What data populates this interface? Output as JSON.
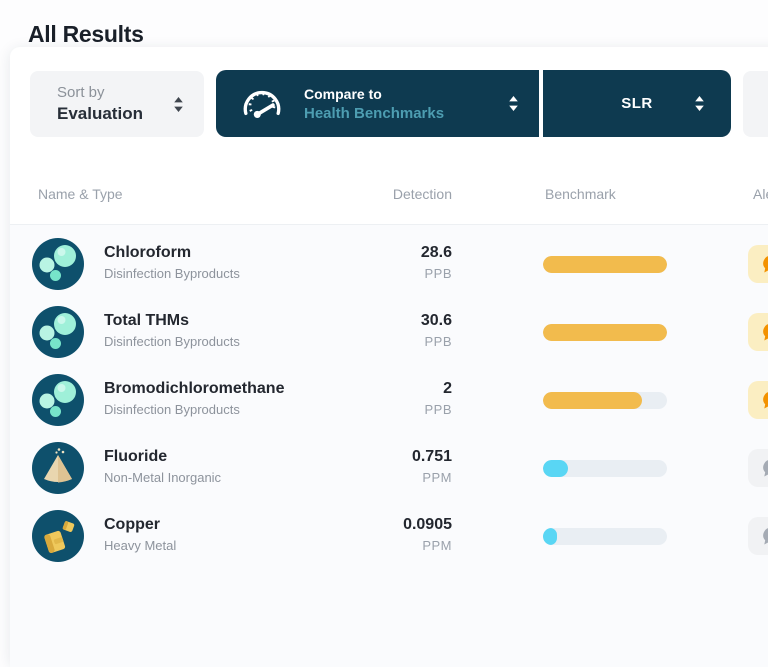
{
  "page": {
    "title": "All Results"
  },
  "toolbar": {
    "sort": {
      "label": "Sort by",
      "value": "Evaluation"
    },
    "compare": {
      "label": "Compare to",
      "value": "Health Benchmarks"
    },
    "slr": {
      "value": "SLR"
    }
  },
  "table": {
    "headers": {
      "name": "Name & Type",
      "detection": "Detection",
      "benchmark": "Benchmark",
      "alert": "Alert"
    },
    "rows": [
      {
        "name": "Chloroform",
        "type": "Disinfection Byproducts",
        "value": "28.6",
        "unit": "PPB",
        "benchmark_fill": 100,
        "severity": "warning",
        "icon": "bubbles-icon"
      },
      {
        "name": "Total THMs",
        "type": "Disinfection Byproducts",
        "value": "30.6",
        "unit": "PPB",
        "benchmark_fill": 100,
        "severity": "warning",
        "icon": "bubbles-icon"
      },
      {
        "name": "Bromodichloromethane",
        "type": "Disinfection Byproducts",
        "value": "2",
        "unit": "PPB",
        "benchmark_fill": 80,
        "severity": "warning",
        "icon": "bubbles-icon"
      },
      {
        "name": "Fluoride",
        "type": "Non-Metal Inorganic",
        "value": "0.751",
        "unit": "PPM",
        "benchmark_fill": 20,
        "severity": "ok",
        "icon": "powder-pile-icon"
      },
      {
        "name": "Copper",
        "type": "Heavy Metal",
        "value": "0.0905",
        "unit": "PPM",
        "benchmark_fill": 11,
        "severity": "ok",
        "icon": "metal-chunks-icon"
      }
    ]
  },
  "colors": {
    "navy": "#0E3A50",
    "teal_accent": "#4D9DB1",
    "icon_circle": "#0E506C",
    "warning_bar": "#F2BB4D",
    "safe_bar": "#59D6F4",
    "bar_track": "#E9EEF3",
    "warning_badge_bg": "#FBEEC2",
    "warning_badge_icon": "#F39200",
    "neutral_badge_bg": "#F1F2F4",
    "neutral_badge_icon": "#A5ABB4"
  }
}
